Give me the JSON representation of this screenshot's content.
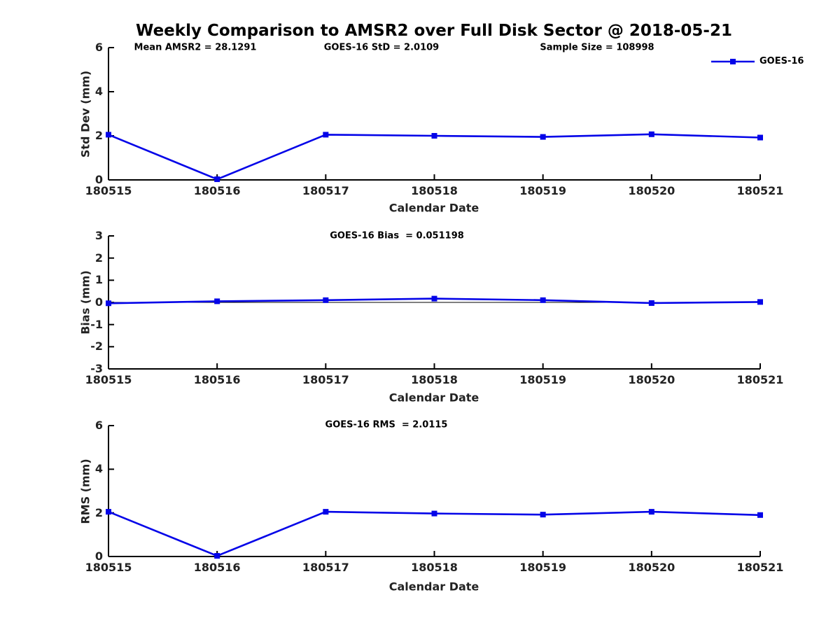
{
  "title": "Weekly Comparison to AMSR2 over Full Disk Sector @ 2018-05-21",
  "legend": {
    "label": "GOES-16",
    "color": "#0404e8",
    "position": "top-right-outside"
  },
  "chart_data": [
    {
      "type": "line",
      "name": "std-dev-subplot",
      "annotations": [
        "Mean AMSR2 = 28.1291",
        "GOES-16 StD = 2.0109",
        "Sample Size = 108998"
      ],
      "categories": [
        "180515",
        "180516",
        "180517",
        "180518",
        "180519",
        "180520",
        "180521"
      ],
      "series": [
        {
          "name": "GOES-16",
          "values": [
            2.05,
            0.03,
            2.05,
            2.0,
            1.95,
            2.07,
            1.92
          ]
        }
      ],
      "xlabel": "Calendar Date",
      "ylabel": "Std Dev (mm)",
      "ylim": [
        0,
        6
      ],
      "yticks": [
        0,
        2,
        4,
        6
      ],
      "zero_line": false,
      "grid": false,
      "marker": "square",
      "line_color": "#0404e8"
    },
    {
      "type": "line",
      "name": "bias-subplot",
      "annotations": [
        "GOES-16 Bias  = 0.051198"
      ],
      "categories": [
        "180515",
        "180516",
        "180517",
        "180518",
        "180519",
        "180520",
        "180521"
      ],
      "series": [
        {
          "name": "GOES-16",
          "values": [
            -0.04,
            0.05,
            0.1,
            0.17,
            0.1,
            -0.03,
            0.02
          ]
        }
      ],
      "xlabel": "Calendar Date",
      "ylabel": "Bias (mm)",
      "ylim": [
        -3,
        3
      ],
      "yticks": [
        -3,
        -2,
        -1,
        0,
        1,
        2,
        3
      ],
      "zero_line": true,
      "grid": false,
      "marker": "square",
      "line_color": "#0404e8"
    },
    {
      "type": "line",
      "name": "rms-subplot",
      "annotations": [
        "GOES-16 RMS  = 2.0115"
      ],
      "categories": [
        "180515",
        "180516",
        "180517",
        "180518",
        "180519",
        "180520",
        "180521"
      ],
      "series": [
        {
          "name": "GOES-16",
          "values": [
            2.05,
            0.03,
            2.05,
            1.97,
            1.92,
            2.05,
            1.9
          ]
        }
      ],
      "xlabel": "Calendar Date",
      "ylabel": "RMS (mm)",
      "ylim": [
        0,
        6
      ],
      "yticks": [
        0,
        2,
        4,
        6
      ],
      "zero_line": false,
      "grid": false,
      "marker": "square",
      "line_color": "#0404e8"
    }
  ]
}
